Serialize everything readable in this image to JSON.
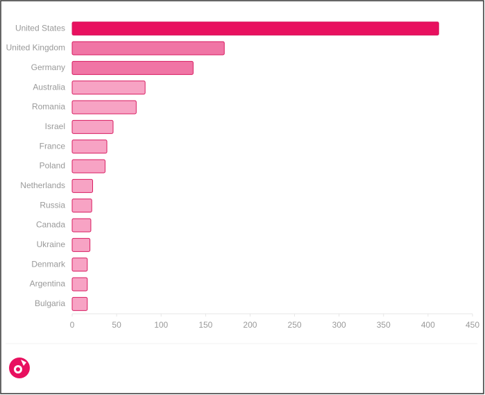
{
  "chart_data": {
    "type": "bar",
    "orientation": "horizontal",
    "categories": [
      "United States",
      "United Kingdom",
      "Germany",
      "Australia",
      "Romania",
      "Israel",
      "France",
      "Poland",
      "Netherlands",
      "Russia",
      "Canada",
      "Ukraine",
      "Denmark",
      "Argentina",
      "Bulgaria"
    ],
    "values": [
      412,
      171,
      136,
      82,
      72,
      46,
      39,
      37,
      23,
      22,
      21,
      20,
      17,
      17,
      17
    ],
    "colors": [
      "#e8105f",
      "#f075a5",
      "#f075a5",
      "#f7a3c4",
      "#f7a3c4",
      "#f7a3c4",
      "#f7a3c4",
      "#f7a3c4",
      "#f7a3c4",
      "#f7a3c4",
      "#f7a3c4",
      "#f7a3c4",
      "#f7a3c4",
      "#f7a3c4",
      "#f7a3c4"
    ],
    "xlim": [
      0,
      450
    ],
    "xticks": [
      0,
      50,
      100,
      150,
      200,
      250,
      300,
      350,
      400,
      450
    ]
  }
}
